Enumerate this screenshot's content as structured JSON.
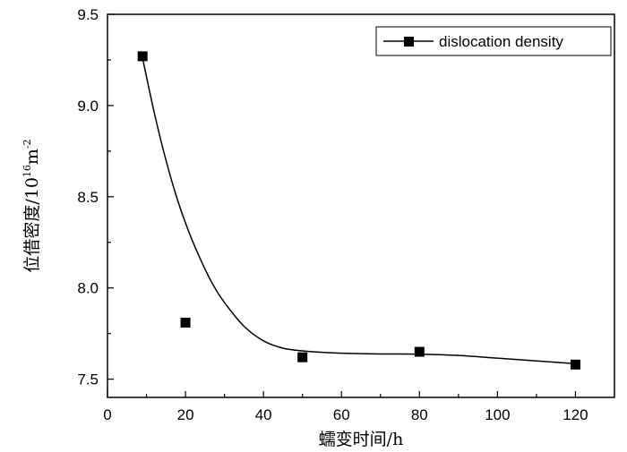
{
  "chart_data": {
    "type": "scatter",
    "xlabel": "蠕变时间/h",
    "ylabel_main": "位借密度/10",
    "ylabel_exp1": "16",
    "ylabel_unit": "m",
    "ylabel_exp2": "-2",
    "xlim": [
      0,
      130
    ],
    "ylim": [
      7.4,
      9.5
    ],
    "xticks": [
      0,
      20,
      40,
      60,
      80,
      100,
      120
    ],
    "yticks": [
      "7.5",
      "8.0",
      "8.5",
      "9.0",
      "9.5"
    ],
    "legend": {
      "position": "top-right",
      "label": "dislocation density"
    },
    "series": [
      {
        "name": "dislocation density",
        "marker": "square",
        "x": [
          9,
          20,
          50,
          80,
          120
        ],
        "y": [
          9.27,
          7.81,
          7.62,
          7.65,
          7.58
        ]
      }
    ],
    "fit_curve": {
      "x": [
        9,
        12,
        15,
        18,
        21,
        24,
        27,
        30,
        35,
        40,
        45,
        50,
        55,
        60,
        70,
        80,
        90,
        100,
        110,
        120
      ],
      "y": [
        9.26,
        8.96,
        8.7,
        8.48,
        8.3,
        8.15,
        8.02,
        7.92,
        7.79,
        7.71,
        7.67,
        7.655,
        7.647,
        7.642,
        7.638,
        7.637,
        7.63,
        7.615,
        7.6,
        7.585
      ]
    }
  }
}
